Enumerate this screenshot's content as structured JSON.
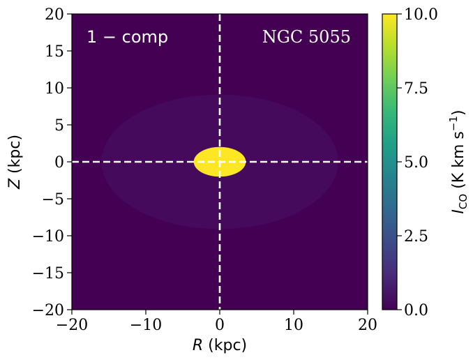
{
  "chart_data": {
    "type": "heatmap",
    "title": "",
    "xlabel": "R (kpc)",
    "xlabel_var": "R",
    "xlabel_unit": "(kpc)",
    "ylabel": "Z (kpc)",
    "ylabel_var": "Z",
    "ylabel_unit": "(kpc)",
    "xlim": [
      -20,
      20
    ],
    "ylim": [
      -20,
      20
    ],
    "xticks": [
      -20,
      -10,
      0,
      10,
      20
    ],
    "xtick_labels": [
      "−20",
      "−10",
      "0",
      "10",
      "20"
    ],
    "yticks": [
      -20,
      -15,
      -10,
      -5,
      0,
      5,
      10,
      15,
      20
    ],
    "ytick_labels": [
      "−20",
      "−15",
      "−10",
      "−5",
      "0",
      "5",
      "10",
      "15",
      "20"
    ],
    "colorbar": {
      "label": "I_CO (K km s^-1)",
      "label_var": "I",
      "label_sub": "CO",
      "label_unit_main": "(K km s",
      "label_unit_sup": "−1",
      "label_unit_end": ")",
      "range": [
        0,
        10
      ],
      "colormap": "viridis",
      "ticks": [
        0,
        2.5,
        5,
        7.5,
        10
      ],
      "tick_labels": [
        "0.0",
        "2.5",
        "5.0",
        "7.5",
        "10.0"
      ]
    },
    "annotations": {
      "model": "1 − comp",
      "galaxy": "NGC 5055"
    },
    "crosshair": {
      "x": 0,
      "y": 0,
      "color": "#ffffff",
      "style": "dashed"
    },
    "emission_model": {
      "center": [
        0,
        0
      ],
      "peak": 10,
      "scale_length_R": 4.4,
      "scale_height_Z": 2.5,
      "extent_R": 16,
      "extent_Z": 8
    }
  },
  "colors": {
    "viridis_stops": [
      "#440154",
      "#482878",
      "#3e4989",
      "#31688e",
      "#26828e",
      "#1f9e89",
      "#35b779",
      "#6ece58",
      "#b5de2b",
      "#fde725"
    ],
    "axis": "#000000",
    "annotation_text": "#ffffff"
  }
}
